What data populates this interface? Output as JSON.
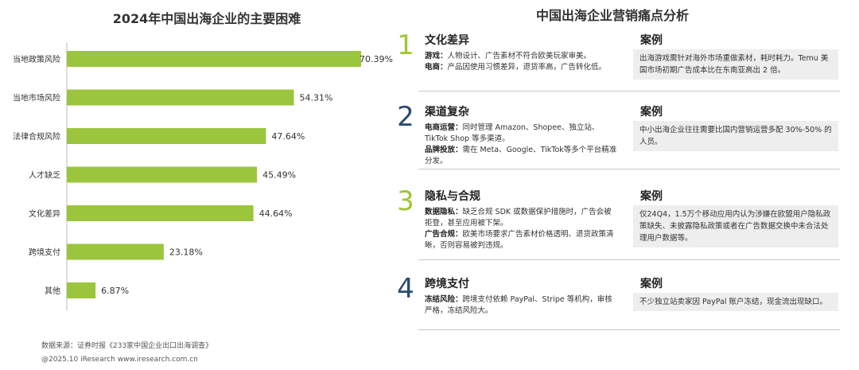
{
  "chart_data": {
    "type": "bar",
    "orientation": "horizontal",
    "title": "2024年中国出海企业的主要困难",
    "categories": [
      "当地政策风险",
      "当地市场风险",
      "法律合规风险",
      "人才缺乏",
      "文化差异",
      "跨境支付",
      "其他"
    ],
    "values": [
      70.39,
      54.31,
      47.64,
      45.49,
      44.64,
      23.18,
      6.87
    ],
    "value_labels": [
      "70.39%",
      "54.31%",
      "47.64%",
      "45.49%",
      "44.64%",
      "23.18%",
      "6.87%"
    ],
    "bar_color": "#9bc53d",
    "xlim": [
      0,
      80
    ],
    "grid": false
  },
  "source": "数据来源：证券时报《233家中国企业出口出海调查》",
  "copyright": "@2025.10 iResearch www.iresearch.com.cn",
  "right_title": "中国出海企业营销痛点分析",
  "colors": {
    "green": "#a0c534",
    "blue": "#2b4a73",
    "case_bg": "#eeeeee"
  },
  "items": [
    {
      "num": "1",
      "head": "文化差异",
      "desc": [
        {
          "k": "游戏：",
          "v": "人物设计、广告素材不符合欧美玩家审美。"
        },
        {
          "k": "电商：",
          "v": "产品因使用习惯差异，退货率高，广告转化低。"
        }
      ],
      "case_head": "案例",
      "case_text": "出海游戏需针对海外市场重做素材，耗时耗力。Temu 美国市场初期广告成本比在东南亚高出 2 倍。"
    },
    {
      "num": "2",
      "head": "渠道复杂",
      "desc": [
        {
          "k": "电商运营：",
          "v": "同时管理 Amazon、Shopee、独立站、TikTok Shop 等多渠道。"
        },
        {
          "k": "品牌投放：",
          "v": "需在 Meta、Google、TikTok等多个平台精准分发。"
        }
      ],
      "case_head": "案例",
      "case_text": "中小出海企业往往需要比国内营销运营多配 30%-50% 的人员。"
    },
    {
      "num": "3",
      "head": "隐私与合规",
      "desc": [
        {
          "k": "数据隐私：",
          "v": "缺乏合规 SDK 或数据保护措施时，广告会被拒登，甚至应用被下架。"
        },
        {
          "k": "广告合规：",
          "v": "欧美市场要求广告素材价格透明、退货政策清晰，否则容易被判违规。"
        }
      ],
      "case_head": "案例",
      "case_text": "仅24Q4，1.5万个移动应用内认为涉嫌在欧盟用户隐私政策缺失、未披露隐私政策或者在广告数据交换中未合法处理用户数据等。"
    },
    {
      "num": "4",
      "head": "跨境支付",
      "desc": [
        {
          "k": "冻结风险：",
          "v": "跨境支付依赖 PayPal、Stripe 等机构，审核严格，冻结风险大。"
        }
      ],
      "case_head": "案例",
      "case_text": "不少独立站卖家因 PayPal 账户冻结，现金流出现缺口。"
    }
  ]
}
